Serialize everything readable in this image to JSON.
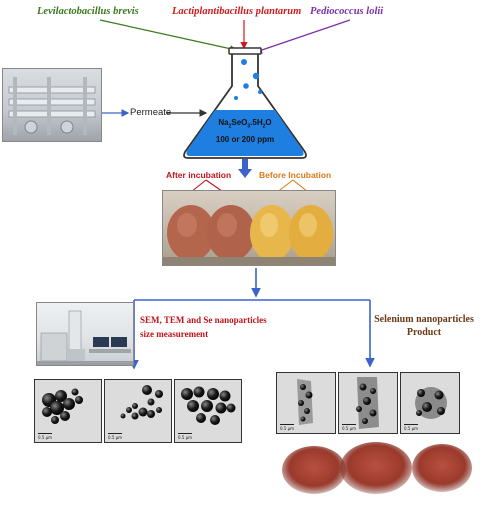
{
  "strains": {
    "s1": "Levilactobacillus brevis",
    "s2": "Lactiplantibacillus plantarum",
    "s3": "Pediococcus lolii"
  },
  "feed": {
    "label": "Permeate"
  },
  "flask": {
    "formula_main": "Na",
    "formula_sub1": "2",
    "formula_mid": "SeO",
    "formula_sub2": "3",
    "formula_end": ".5H",
    "formula_sub3": "2",
    "formula_tail": "O",
    "concentration": "100 or 200 ppm"
  },
  "incubation": {
    "after": "After incubation",
    "before": "Before Incubation"
  },
  "branches": {
    "left": "SEM, TEM and Se nanoparticles size measurement",
    "right": "Selenium nanoparticles Product"
  },
  "micrographs": {
    "scale_label": "0.5 μm"
  },
  "colors": {
    "s1": "#3a7a1e",
    "s2": "#d01a1a",
    "s3": "#7b2fa8",
    "after": "#c0141c",
    "before": "#d9791a",
    "left_branch": "#c0141c",
    "right_branch": "#6b3a17",
    "arrow": "#3b63c9",
    "flask_liquid": "#1f7fe0"
  }
}
